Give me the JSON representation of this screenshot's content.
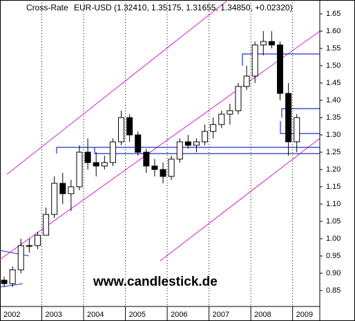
{
  "chart_data": {
    "type": "candlestick",
    "title": "Cross-Rate",
    "subtitle": "EUR-USD (1.32410, 1.35175, 1.31655, 1.34850, +0.02320)",
    "annotations": [
      "www.candlestick.de"
    ],
    "up_color": "#ffffff",
    "down_color": "#000000",
    "x": [
      2002.1,
      2002.3,
      2002.5,
      2002.7,
      2002.9,
      2003.1,
      2003.3,
      2003.5,
      2003.7,
      2003.9,
      2004.1,
      2004.3,
      2004.5,
      2004.7,
      2004.9,
      2005.1,
      2005.3,
      2005.5,
      2005.7,
      2005.9,
      2006.1,
      2006.3,
      2006.5,
      2006.7,
      2006.9,
      2007.1,
      2007.3,
      2007.5,
      2007.7,
      2007.9,
      2008.1,
      2008.3,
      2008.5,
      2008.7,
      2008.9,
      2009.1
    ],
    "open": [
      0.88,
      0.87,
      0.91,
      0.98,
      0.98,
      1.01,
      1.07,
      1.16,
      1.13,
      1.15,
      1.25,
      1.22,
      1.21,
      1.22,
      1.28,
      1.35,
      1.3,
      1.25,
      1.21,
      1.2,
      1.18,
      1.23,
      1.28,
      1.27,
      1.28,
      1.31,
      1.33,
      1.36,
      1.37,
      1.44,
      1.47,
      1.56,
      1.57,
      1.56,
      1.42,
      1.28
    ],
    "high": [
      0.89,
      0.92,
      1.0,
      1.0,
      1.02,
      1.09,
      1.18,
      1.19,
      1.17,
      1.27,
      1.29,
      1.25,
      1.24,
      1.29,
      1.37,
      1.36,
      1.31,
      1.26,
      1.23,
      1.22,
      1.24,
      1.29,
      1.3,
      1.29,
      1.33,
      1.35,
      1.37,
      1.39,
      1.45,
      1.5,
      1.57,
      1.6,
      1.6,
      1.57,
      1.45,
      1.36
    ],
    "low": [
      0.86,
      0.86,
      0.9,
      0.96,
      0.97,
      1.01,
      1.06,
      1.1,
      1.08,
      1.14,
      1.2,
      1.18,
      1.2,
      1.21,
      1.27,
      1.28,
      1.24,
      1.19,
      1.18,
      1.16,
      1.17,
      1.22,
      1.26,
      1.25,
      1.27,
      1.29,
      1.32,
      1.33,
      1.36,
      1.43,
      1.45,
      1.53,
      1.55,
      1.4,
      1.24,
      1.25
    ],
    "close": [
      0.87,
      0.91,
      0.98,
      0.98,
      1.01,
      1.07,
      1.16,
      1.13,
      1.15,
      1.25,
      1.22,
      1.21,
      1.22,
      1.28,
      1.35,
      1.3,
      1.25,
      1.21,
      1.2,
      1.18,
      1.23,
      1.28,
      1.27,
      1.28,
      1.31,
      1.33,
      1.36,
      1.37,
      1.44,
      1.47,
      1.56,
      1.57,
      1.56,
      1.42,
      1.28,
      1.35
    ],
    "xlim": [
      2002,
      2009.65
    ],
    "xticks": [
      2002,
      2003,
      2004,
      2005,
      2006,
      2007,
      2008,
      2009
    ],
    "ylim": [
      0.804,
      1.69
    ],
    "yticks": [
      0.85,
      {
        "value": 0.9,
        "label": "0.90"
      },
      0.95,
      {
        "value": 1.0,
        "label": "1.00"
      },
      1.05,
      {
        "value": 1.1,
        "label": "1.10"
      },
      1.15,
      {
        "value": 1.2,
        "label": "1.20"
      },
      1.25,
      {
        "value": 1.3,
        "label": "1.30"
      },
      1.35,
      {
        "value": 1.4,
        "label": "1.40"
      },
      1.45,
      {
        "value": 1.5,
        "label": "1.50"
      },
      1.55,
      {
        "value": 1.6,
        "label": "1.60"
      },
      1.65
    ],
    "grid": true
  }
}
